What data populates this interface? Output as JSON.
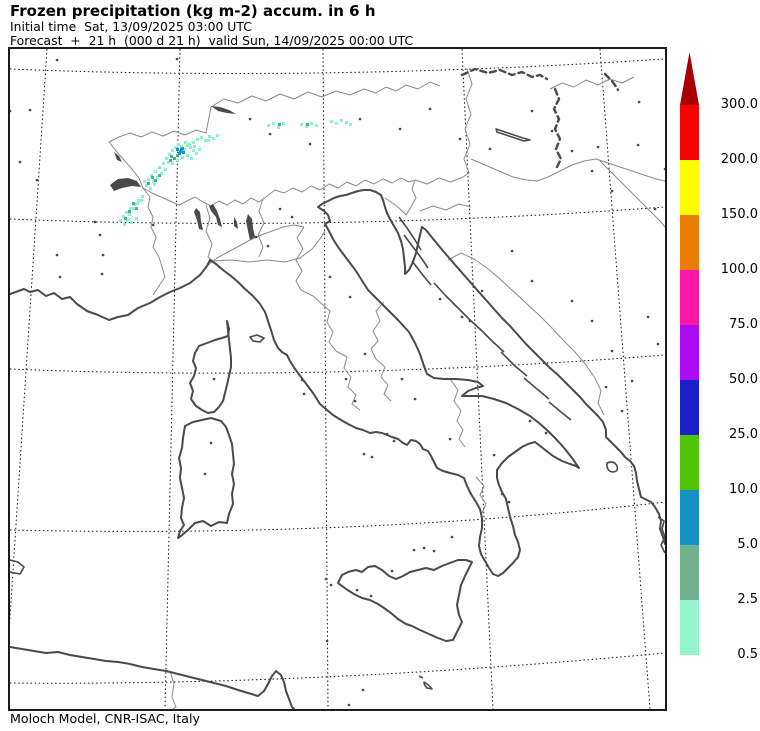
{
  "header": {
    "title": "Frozen precipitation (kg m-2) accum. in 6 h",
    "init_line": "Initial time  Sat, 13/09/2025 03:00 UTC",
    "forecast_line": "Forecast  +  21 h  (000 d 21 h)  valid Sun, 14/09/2025 00:00 UTC"
  },
  "footer": {
    "attribution": "Moloch Model, CNR-ISAC, Italy"
  },
  "colorbar": {
    "units": "kg m-2",
    "overflow_arrow_color": "#a80000",
    "tick_labels": [
      "300.0",
      "200.0",
      "150.0",
      "100.0",
      "75.0",
      "50.0",
      "25.0",
      "10.0",
      "5.0",
      "2.5",
      "0.5"
    ],
    "bands_top_to_bottom": [
      {
        "min": "200.0",
        "max": "300.0",
        "color": "#fb0000"
      },
      {
        "min": "150.0",
        "max": "200.0",
        "color": "#fdfd00"
      },
      {
        "min": "100.0",
        "max": "150.0",
        "color": "#e97d00"
      },
      {
        "min": "75.0",
        "max": "100.0",
        "color": "#fb17a9"
      },
      {
        "min": "50.0",
        "max": "75.0",
        "color": "#ad0cf3"
      },
      {
        "min": "25.0",
        "max": "50.0",
        "color": "#1b20c8"
      },
      {
        "min": "10.0",
        "max": "25.0",
        "color": "#50c505"
      },
      {
        "min": "5.0",
        "max": "10.0",
        "color": "#1792c8"
      },
      {
        "min": "2.5",
        "max": "5.0",
        "color": "#72b18e"
      },
      {
        "min": "0.5",
        "max": "2.5",
        "color": "#92f5d0"
      }
    ]
  },
  "precipitation": {
    "region": "northwestern Alps",
    "cell_size": 3,
    "light_color": "#8df2cf",
    "medium_color": "#46b38e",
    "heavy_color": "#1d93cb",
    "light": [
      [
        182,
        92
      ],
      [
        186,
        89
      ],
      [
        190,
        87
      ],
      [
        194,
        90
      ],
      [
        198,
        86
      ],
      [
        202,
        88
      ],
      [
        206,
        85
      ],
      [
        178,
        94
      ],
      [
        155,
        108
      ],
      [
        158,
        104
      ],
      [
        161,
        100
      ],
      [
        164,
        97
      ],
      [
        167,
        94
      ],
      [
        170,
        96
      ],
      [
        173,
        99
      ],
      [
        176,
        95
      ],
      [
        179,
        97
      ],
      [
        182,
        100
      ],
      [
        185,
        103
      ],
      [
        176,
        105
      ],
      [
        171,
        107
      ],
      [
        166,
        110
      ],
      [
        161,
        113
      ],
      [
        157,
        112
      ],
      [
        180,
        108
      ],
      [
        183,
        96
      ],
      [
        188,
        99
      ],
      [
        174,
        92
      ],
      [
        152,
        113
      ],
      [
        148,
        117
      ],
      [
        144,
        121
      ],
      [
        140,
        125
      ],
      [
        137,
        129
      ],
      [
        142,
        131
      ],
      [
        146,
        127
      ],
      [
        150,
        123
      ],
      [
        154,
        119
      ],
      [
        135,
        135
      ],
      [
        139,
        138
      ],
      [
        143,
        134
      ],
      [
        133,
        131
      ],
      [
        131,
        146
      ],
      [
        127,
        150
      ],
      [
        123,
        154
      ],
      [
        119,
        158
      ],
      [
        115,
        162
      ],
      [
        112,
        166
      ],
      [
        118,
        164
      ],
      [
        122,
        158
      ],
      [
        126,
        153
      ],
      [
        130,
        150
      ],
      [
        116,
        170
      ],
      [
        113,
        174
      ],
      [
        120,
        172
      ],
      [
        125,
        168
      ],
      [
        109,
        170
      ],
      [
        257,
        75
      ],
      [
        262,
        73
      ],
      [
        272,
        73
      ],
      [
        290,
        74
      ],
      [
        295,
        76
      ],
      [
        300,
        73
      ],
      [
        305,
        75
      ],
      [
        320,
        71
      ],
      [
        325,
        73
      ],
      [
        330,
        70
      ],
      [
        335,
        72
      ],
      [
        339,
        74
      ],
      [
        267,
        77
      ],
      [
        197,
        90
      ]
    ],
    "medium": [
      [
        160,
        106
      ],
      [
        163,
        108
      ],
      [
        166,
        105
      ],
      [
        159,
        110
      ],
      [
        141,
        127
      ],
      [
        137,
        133
      ],
      [
        122,
        153
      ],
      [
        118,
        161
      ],
      [
        114,
        168
      ],
      [
        125,
        158
      ],
      [
        268,
        74
      ],
      [
        296,
        74
      ],
      [
        148,
        125
      ],
      [
        144,
        130
      ]
    ],
    "heavy": [
      [
        166,
        99
      ],
      [
        169,
        101
      ],
      [
        171,
        98
      ],
      [
        168,
        103
      ],
      [
        172,
        102
      ],
      [
        170,
        99
      ]
    ]
  }
}
